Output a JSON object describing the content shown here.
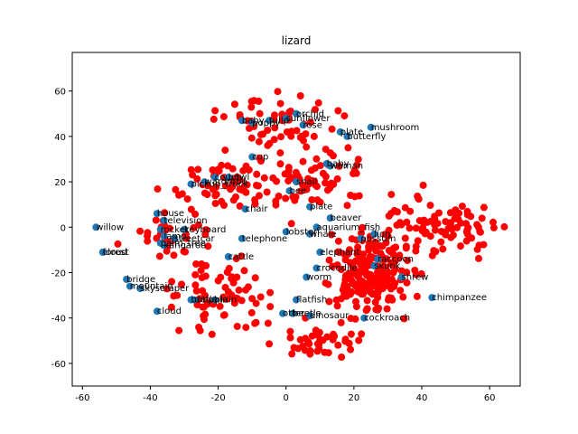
{
  "chart_data": {
    "type": "scatter",
    "title": "lizard",
    "xlabel": "",
    "ylabel": "",
    "xlim": [
      -63,
      69
    ],
    "ylim": [
      -70,
      77
    ],
    "xticks": [
      -60,
      -40,
      -20,
      0,
      20,
      40,
      60
    ],
    "yticks": [
      -60,
      -40,
      -20,
      0,
      20,
      40,
      60
    ],
    "grid": false,
    "colors": {
      "labeled": "#1f77b4",
      "background": "#ff0000"
    },
    "labeled_points": [
      {
        "x": -56,
        "y": 0,
        "label": "willow"
      },
      {
        "x": -54,
        "y": -11,
        "label": "forest"
      },
      {
        "x": -54,
        "y": -11,
        "label": "cloud"
      },
      {
        "x": -47,
        "y": -23,
        "label": "bridge"
      },
      {
        "x": -46,
        "y": -26,
        "label": "mountain"
      },
      {
        "x": -43,
        "y": -27,
        "label": "skyscraper"
      },
      {
        "x": -38,
        "y": 6,
        "label": "house"
      },
      {
        "x": -36,
        "y": 3,
        "label": "television"
      },
      {
        "x": -37,
        "y": -1,
        "label": "rocket"
      },
      {
        "x": -30,
        "y": -1,
        "label": "keyboard"
      },
      {
        "x": -36,
        "y": -4,
        "label": "lamp"
      },
      {
        "x": -33,
        "y": -5,
        "label": "streetcar"
      },
      {
        "x": -37,
        "y": -7,
        "label": "palm_tree"
      },
      {
        "x": -36,
        "y": -8,
        "label": "kangaroo"
      },
      {
        "x": -17,
        "y": -13,
        "label": "cattle"
      },
      {
        "x": -13,
        "y": -5,
        "label": "telephone"
      },
      {
        "x": -12,
        "y": 8,
        "label": "chair"
      },
      {
        "x": -38,
        "y": -37,
        "label": "cloud"
      },
      {
        "x": -28,
        "y": -32,
        "label": "bottle"
      },
      {
        "x": -27,
        "y": -32,
        "label": "dolphin"
      },
      {
        "x": -21,
        "y": -32,
        "label": "plain"
      },
      {
        "x": -28,
        "y": 19,
        "label": "pickup_truck"
      },
      {
        "x": -24,
        "y": 20,
        "label": "wardrobe"
      },
      {
        "x": -21,
        "y": 22,
        "label": "couch"
      },
      {
        "x": -17,
        "y": 22,
        "label": "bowl"
      },
      {
        "x": -10,
        "y": 31,
        "label": "cup"
      },
      {
        "x": -13,
        "y": 47,
        "label": "baby"
      },
      {
        "x": -10,
        "y": 46,
        "label": "poppy"
      },
      {
        "x": -5,
        "y": 47,
        "label": "tulip"
      },
      {
        "x": 0,
        "y": 48,
        "label": "sunflower"
      },
      {
        "x": 3,
        "y": 50,
        "label": "orchid"
      },
      {
        "x": 5,
        "y": 45,
        "label": "rose"
      },
      {
        "x": 16,
        "y": 42,
        "label": "plate"
      },
      {
        "x": 18,
        "y": 40,
        "label": "butterfly"
      },
      {
        "x": 25,
        "y": 44,
        "label": "mushroom"
      },
      {
        "x": 12,
        "y": 28,
        "label": "baby"
      },
      {
        "x": 13,
        "y": 27,
        "label": "woman"
      },
      {
        "x": 3,
        "y": 20,
        "label": "snail"
      },
      {
        "x": 1,
        "y": 16,
        "label": "bee"
      },
      {
        "x": 7,
        "y": 9,
        "label": "plate"
      },
      {
        "x": 0,
        "y": -2,
        "label": "lobster"
      },
      {
        "x": 7,
        "y": -3,
        "label": "whale"
      },
      {
        "x": 9,
        "y": 0,
        "label": "aquarium_fish"
      },
      {
        "x": 13,
        "y": 4,
        "label": "beaver"
      },
      {
        "x": 26,
        "y": -3,
        "label": "lion"
      },
      {
        "x": 22,
        "y": -5,
        "label": "possum"
      },
      {
        "x": 10,
        "y": -11,
        "label": "elephant"
      },
      {
        "x": 27,
        "y": -14,
        "label": "raccoon"
      },
      {
        "x": 26,
        "y": -17,
        "label": "skunk"
      },
      {
        "x": 9,
        "y": -18,
        "label": "crocodile"
      },
      {
        "x": 6,
        "y": -22,
        "label": "worm"
      },
      {
        "x": 34,
        "y": -22,
        "label": "shrew"
      },
      {
        "x": 43,
        "y": -31,
        "label": "chimpanzee"
      },
      {
        "x": 3,
        "y": -32,
        "label": "flatfish"
      },
      {
        "x": -1,
        "y": -38,
        "label": "otter"
      },
      {
        "x": 2,
        "y": -38,
        "label": "beetle"
      },
      {
        "x": 7,
        "y": -39,
        "label": "dinosaur"
      },
      {
        "x": 23,
        "y": -40,
        "label": "cockroach"
      }
    ]
  }
}
